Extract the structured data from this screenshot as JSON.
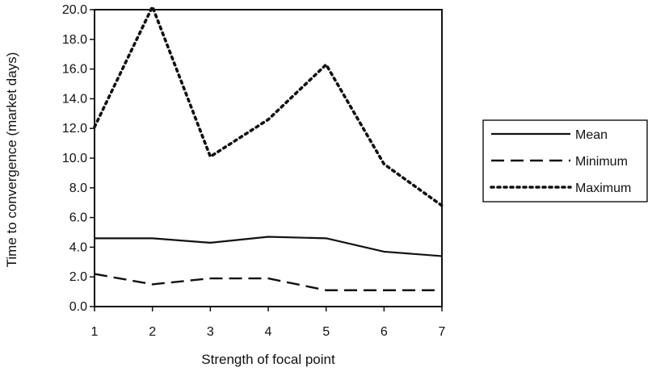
{
  "chart_data": {
    "type": "line",
    "title": "",
    "xlabel": "Strength of focal point",
    "ylabel": "Time to convergence (market days)",
    "x": [
      1,
      2,
      3,
      4,
      5,
      6,
      7
    ],
    "x_tick_labels": [
      "1",
      "2",
      "3",
      "4",
      "5",
      "6",
      "7"
    ],
    "ylim": [
      0,
      20
    ],
    "y_ticks": [
      0,
      2,
      4,
      6,
      8,
      10,
      12,
      14,
      16,
      18,
      20
    ],
    "y_tick_labels": [
      "0.0",
      "2.0",
      "4.0",
      "6.0",
      "8.0",
      "10.0",
      "12.0",
      "14.0",
      "16.0",
      "18.0",
      "20.0"
    ],
    "grid": false,
    "legend_position": "right",
    "series": [
      {
        "name": "Mean",
        "values": [
          4.6,
          4.6,
          4.3,
          4.7,
          4.6,
          3.7,
          3.4
        ],
        "line_style": "solid",
        "color": "#111111"
      },
      {
        "name": "Minimum",
        "values": [
          2.2,
          1.5,
          1.9,
          1.9,
          1.1,
          1.1,
          1.1
        ],
        "line_style": "dashed",
        "color": "#111111"
      },
      {
        "name": "Maximum",
        "values": [
          12.1,
          20.2,
          10.1,
          12.6,
          16.3,
          9.6,
          6.8
        ],
        "line_style": "dotted",
        "color": "#111111"
      }
    ]
  }
}
